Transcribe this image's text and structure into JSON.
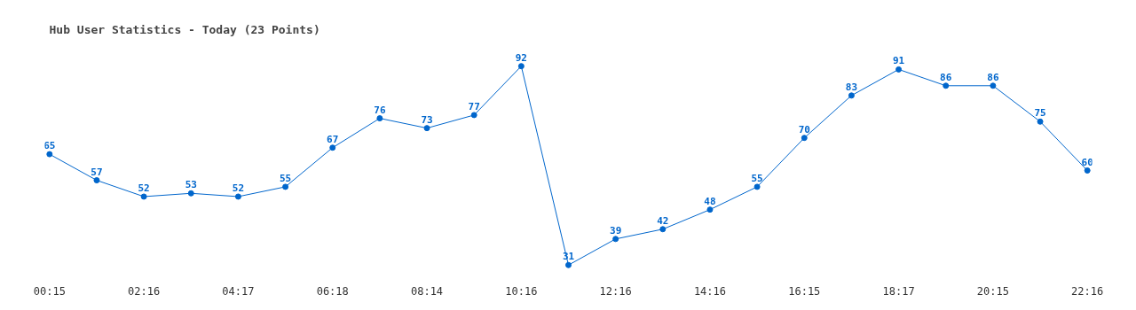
{
  "chart_data": {
    "type": "line",
    "title": "Hub User Statistics - Today (23 Points)",
    "categories": [
      "00:15",
      null,
      "02:16",
      null,
      "04:17",
      null,
      "06:18",
      null,
      "08:14",
      null,
      "10:16",
      null,
      "12:16",
      null,
      "14:16",
      null,
      "16:15",
      null,
      "18:17",
      null,
      "20:15",
      null,
      "22:16"
    ],
    "series": [
      {
        "color": "#0066cc",
        "values": [
          65,
          57,
          52,
          53,
          52,
          55,
          67,
          76,
          73,
          77,
          92,
          31,
          39,
          42,
          48,
          55,
          70,
          83,
          91,
          86,
          86,
          75,
          60
        ]
      }
    ],
    "data_labels": true,
    "marker": "circle",
    "line_style": "solid"
  }
}
